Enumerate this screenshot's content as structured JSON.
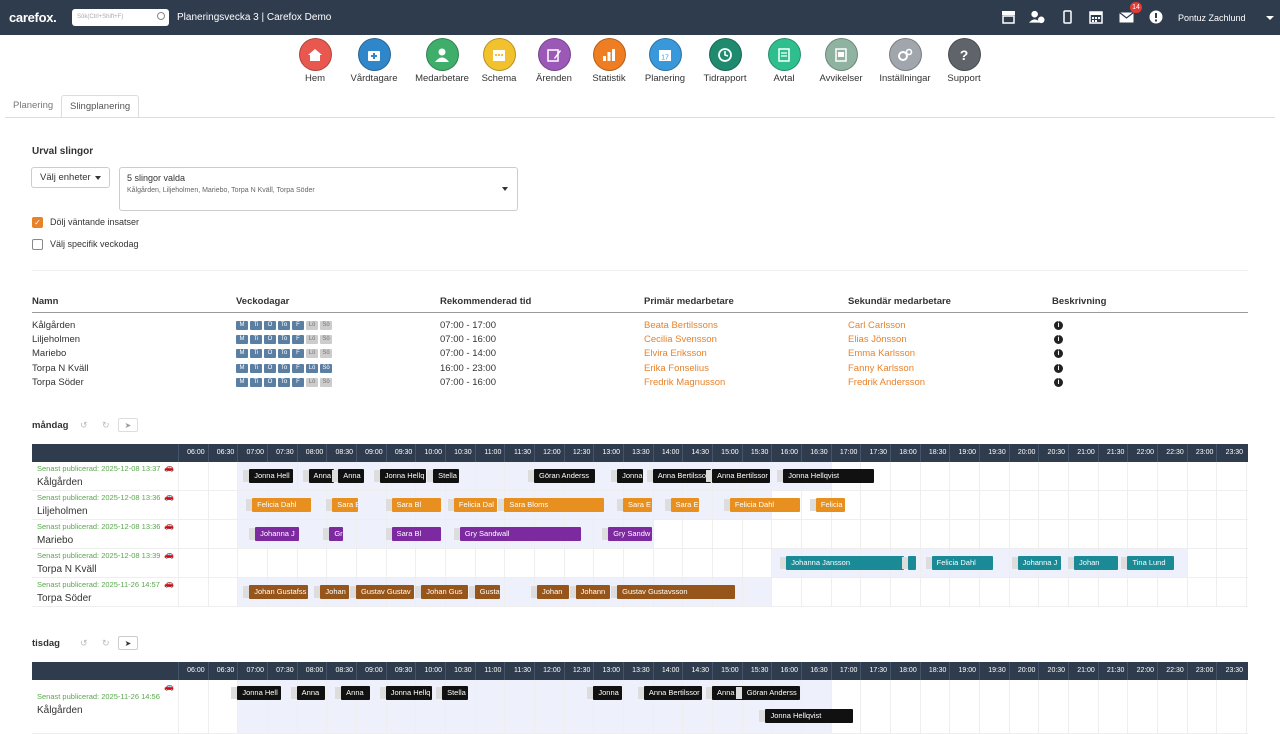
{
  "topbar": {
    "logo": "carefox.",
    "search_placeholder": "Sök(Ctrl+Shift+F)",
    "title": "Planeringsvecka 3 | Carefox Demo",
    "mail_count": "14",
    "user": "Pontuz Zachlund"
  },
  "nav": [
    {
      "label": "Hem",
      "color": "#e8584f",
      "icon": "home-icon"
    },
    {
      "label": "Vårdtagare",
      "color": "#2f86c9",
      "icon": "medkit-icon"
    },
    {
      "label": "Medarbetare",
      "color": "#3fae6a",
      "icon": "person-icon"
    },
    {
      "label": "Schema",
      "color": "#f2c22e",
      "icon": "calendar-icon"
    },
    {
      "label": "Ärenden",
      "color": "#9c58b6",
      "icon": "edit-icon"
    },
    {
      "label": "Statistik",
      "color": "#ef7d22",
      "icon": "bar-chart-icon"
    },
    {
      "label": "Planering",
      "color": "#3898d9",
      "icon": "calendar-17-icon"
    },
    {
      "label": "Tidrapport",
      "color": "#1f8a6e",
      "icon": "clock-icon"
    },
    {
      "label": "Avtal",
      "color": "#2fbf8f",
      "icon": "contract-icon"
    },
    {
      "label": "Avvikelser",
      "color": "#8fb3a0",
      "icon": "report-icon"
    },
    {
      "label": "Inställningar",
      "color": "#a0a6ab",
      "icon": "gears-icon"
    },
    {
      "label": "Support",
      "color": "#5e6469",
      "icon": "help-icon"
    }
  ],
  "tabs": {
    "planering": "Planering",
    "slingplanering": "Slingplanering"
  },
  "filter": {
    "title": "Urval slingor",
    "unit_button": "Välj enheter",
    "selected_title": "5 slingor valda",
    "selected_list": "Kålgården, Liljeholmen, Mariebo, Torpa N Kväll, Torpa Söder",
    "hide_pending": "Dölj väntande insatser",
    "specific_day": "Välj specifik veckodag"
  },
  "table": {
    "headers": [
      "Namn",
      "Veckodagar",
      "Rekommenderad tid",
      "Primär medarbetare",
      "Sekundär medarbetare",
      "Beskrivning"
    ],
    "day_letters": [
      "M",
      "Ti",
      "O",
      "To",
      "F",
      "Lö",
      "Sö"
    ],
    "rows": [
      {
        "name": "Kålgården",
        "days": [
          1,
          1,
          1,
          1,
          1,
          0,
          0
        ],
        "time": "07:00 - 17:00",
        "primary": "Beata Bertilssons",
        "secondary": "Carl Carlsson"
      },
      {
        "name": "Liljeholmen",
        "days": [
          1,
          1,
          1,
          1,
          1,
          0,
          0
        ],
        "time": "07:00 - 16:00",
        "primary": "Cecilia Svensson",
        "secondary": "Elias Jönsson"
      },
      {
        "name": "Mariebo",
        "days": [
          1,
          1,
          1,
          1,
          1,
          0,
          0
        ],
        "time": "07:00 - 14:00",
        "primary": "Elvira Eriksson",
        "secondary": "Emma Karlsson"
      },
      {
        "name": "Torpa N Kväll",
        "days": [
          1,
          1,
          1,
          1,
          1,
          1,
          1
        ],
        "time": "16:00 - 23:00",
        "primary": "Erika Fonselius",
        "secondary": "Fanny Karlsson"
      },
      {
        "name": "Torpa Söder",
        "days": [
          1,
          1,
          1,
          1,
          1,
          0,
          0
        ],
        "time": "07:00 - 16:00",
        "primary": "Fredrik Magnusson",
        "secondary": "Fredrik Andersson"
      }
    ]
  },
  "timeline": {
    "ticks": [
      "06:00",
      "06:30",
      "07:00",
      "07:30",
      "08:00",
      "08:30",
      "09:00",
      "09:30",
      "10:00",
      "10:30",
      "11:00",
      "11:30",
      "12:00",
      "12:30",
      "13:00",
      "13:30",
      "14:00",
      "14:30",
      "15:00",
      "15:30",
      "16:00",
      "16:30",
      "17:00",
      "17:30",
      "18:00",
      "18:30",
      "19:00",
      "19:30",
      "20:00",
      "20:30",
      "21:00",
      "21:30",
      "22:00",
      "22:30",
      "23:00",
      "23:30"
    ]
  },
  "days": [
    {
      "label": "måndag",
      "rows": [
        {
          "published": "Senast publicerad: 2025-12-08 13:37",
          "name": "Kålgården",
          "shade": [
            7.0,
            17.0
          ],
          "color": "#111111",
          "bars": [
            [
              7.2,
              7.95,
              "Jonna Hell"
            ],
            [
              8.2,
              8.65,
              "Anna"
            ],
            [
              8.7,
              9.15,
              "Anna"
            ],
            [
              9.4,
              10.2,
              "Jonna Hellq"
            ],
            [
              10.3,
              10.75,
              "Stella"
            ],
            [
              12.0,
              13.05,
              "Göran Anderss"
            ],
            [
              13.4,
              13.85,
              "Jonna"
            ],
            [
              14.0,
              15.0,
              "Anna Bertilssor"
            ],
            [
              15.0,
              16.0,
              "Anna Bertilssor"
            ],
            [
              16.2,
              17.75,
              "Jonna Hellqvist"
            ]
          ]
        },
        {
          "published": "Senast publicerad: 2025-12-08 13:36",
          "name": "Liljeholmen",
          "shade": [
            7.0,
            16.0
          ],
          "color": "#e8901f",
          "bars": [
            [
              7.25,
              8.25,
              "Felicia Dahl"
            ],
            [
              8.6,
              9.05,
              "Sara E"
            ],
            [
              9.6,
              10.45,
              "Sara Bl"
            ],
            [
              10.65,
              11.4,
              "Felicia Dal"
            ],
            [
              11.5,
              13.2,
              "Sara Bloms"
            ],
            [
              13.5,
              14.0,
              "Sara E"
            ],
            [
              14.3,
              14.8,
              "Sara E"
            ],
            [
              15.3,
              16.5,
              "Felicia Dahl"
            ],
            [
              16.75,
              17.25,
              "Felicia"
            ]
          ]
        },
        {
          "published": "Senast publicerad: 2025-12-08 13:36",
          "name": "Mariebo",
          "shade": [
            7.0,
            14.0
          ],
          "color": "#7d2aa0",
          "bars": [
            [
              7.3,
              8.05,
              "Johanna J"
            ],
            [
              8.55,
              8.8,
              "Gr"
            ],
            [
              9.6,
              10.45,
              "Sara Bl"
            ],
            [
              10.75,
              12.8,
              "Gry Sandwall"
            ],
            [
              13.25,
              14.0,
              "Gry Sandw"
            ]
          ]
        },
        {
          "published": "Senast publicerad: 2025-12-08 13:39",
          "name": "Torpa N Kväll",
          "shade": [
            16.0,
            23.0
          ],
          "color": "#1a8a96",
          "bars": [
            [
              16.25,
              18.25,
              "Johanna Jansson"
            ],
            [
              18.3,
              18.45,
              ""
            ],
            [
              18.7,
              19.75,
              "Felicia Dahl"
            ],
            [
              20.15,
              20.9,
              "Johanna J"
            ],
            [
              21.1,
              21.85,
              "Johan"
            ],
            [
              22.0,
              22.8,
              "Tina Lund"
            ]
          ]
        },
        {
          "published": "Senast publicerad: 2025-11-26 14:57",
          "name": "Torpa Söder",
          "shade": [
            7.0,
            16.0
          ],
          "color": "#96551a",
          "bars": [
            [
              7.2,
              8.2,
              "Johan Gustafss"
            ],
            [
              8.4,
              8.9,
              "Johan"
            ],
            [
              9.0,
              10.0,
              "Gustav Gustav"
            ],
            [
              10.1,
              10.9,
              "Johan Gus"
            ],
            [
              11.0,
              11.45,
              "Gusta"
            ],
            [
              12.05,
              12.6,
              "Johan"
            ],
            [
              12.7,
              13.3,
              "Johann"
            ],
            [
              13.4,
              15.4,
              "Gustav Gustavsson"
            ]
          ]
        }
      ]
    },
    {
      "label": "tisdag",
      "rows": [
        {
          "published": "Senast publicerad: 2025-11-26 14:56",
          "name": "Kålgården",
          "shade": [
            7.0,
            17.0
          ],
          "color": "#111111",
          "bars": [
            [
              7.0,
              7.75,
              "Jonna Hell"
            ],
            [
              8.0,
              8.5,
              "Anna"
            ],
            [
              8.75,
              9.25,
              "Anna"
            ],
            [
              9.5,
              10.3,
              "Jonna Hellq"
            ],
            [
              10.45,
              10.9,
              "Stella"
            ],
            [
              13.0,
              13.5,
              "Jonna"
            ],
            [
              13.85,
              14.85,
              "Anna Bertilssor"
            ],
            [
              15.0,
              16.0,
              "Anna Bertilssor"
            ],
            [
              15.5,
              16.5,
              "Göran Anderss"
            ],
            [
              15.9,
              17.4,
              "Jonna Hellqvist"
            ]
          ]
        }
      ]
    }
  ]
}
